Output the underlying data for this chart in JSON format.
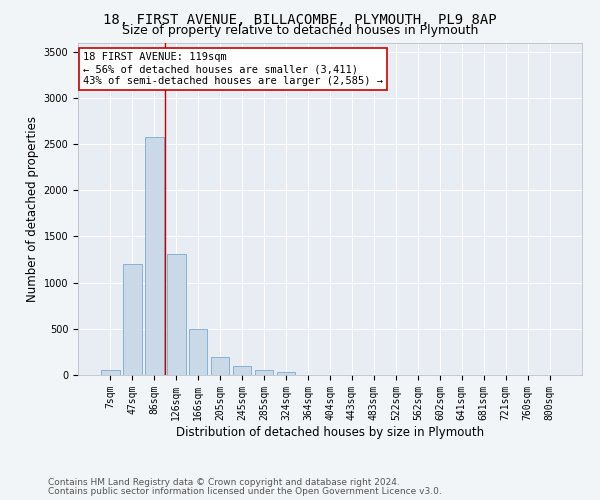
{
  "title_line1": "18, FIRST AVENUE, BILLACOMBE, PLYMOUTH, PL9 8AP",
  "title_line2": "Size of property relative to detached houses in Plymouth",
  "xlabel": "Distribution of detached houses by size in Plymouth",
  "ylabel": "Number of detached properties",
  "categories": [
    "7sqm",
    "47sqm",
    "86sqm",
    "126sqm",
    "166sqm",
    "205sqm",
    "245sqm",
    "285sqm",
    "324sqm",
    "364sqm",
    "404sqm",
    "443sqm",
    "483sqm",
    "522sqm",
    "562sqm",
    "602sqm",
    "641sqm",
    "681sqm",
    "721sqm",
    "760sqm",
    "800sqm"
  ],
  "values": [
    50,
    1200,
    2580,
    1310,
    500,
    190,
    100,
    50,
    30,
    5,
    0,
    0,
    0,
    0,
    0,
    0,
    0,
    0,
    0,
    0,
    0
  ],
  "bar_color": "#c9d9e8",
  "bar_edge_color": "#7aaacb",
  "vline_x": 2.5,
  "vline_color": "#cc0000",
  "ylim": [
    0,
    3600
  ],
  "yticks": [
    0,
    500,
    1000,
    1500,
    2000,
    2500,
    3000,
    3500
  ],
  "annotation_text": "18 FIRST AVENUE: 119sqm\n← 56% of detached houses are smaller (3,411)\n43% of semi-detached houses are larger (2,585) →",
  "annotation_box_color": "#ffffff",
  "annotation_box_edge": "#cc0000",
  "footer_line1": "Contains HM Land Registry data © Crown copyright and database right 2024.",
  "footer_line2": "Contains public sector information licensed under the Open Government Licence v3.0.",
  "bg_color": "#f2f5f8",
  "plot_bg_color": "#e8edf3",
  "grid_color": "#ffffff",
  "title_fontsize": 10,
  "subtitle_fontsize": 9,
  "axis_label_fontsize": 8.5,
  "tick_fontsize": 7,
  "annotation_fontsize": 7.5,
  "footer_fontsize": 6.5
}
